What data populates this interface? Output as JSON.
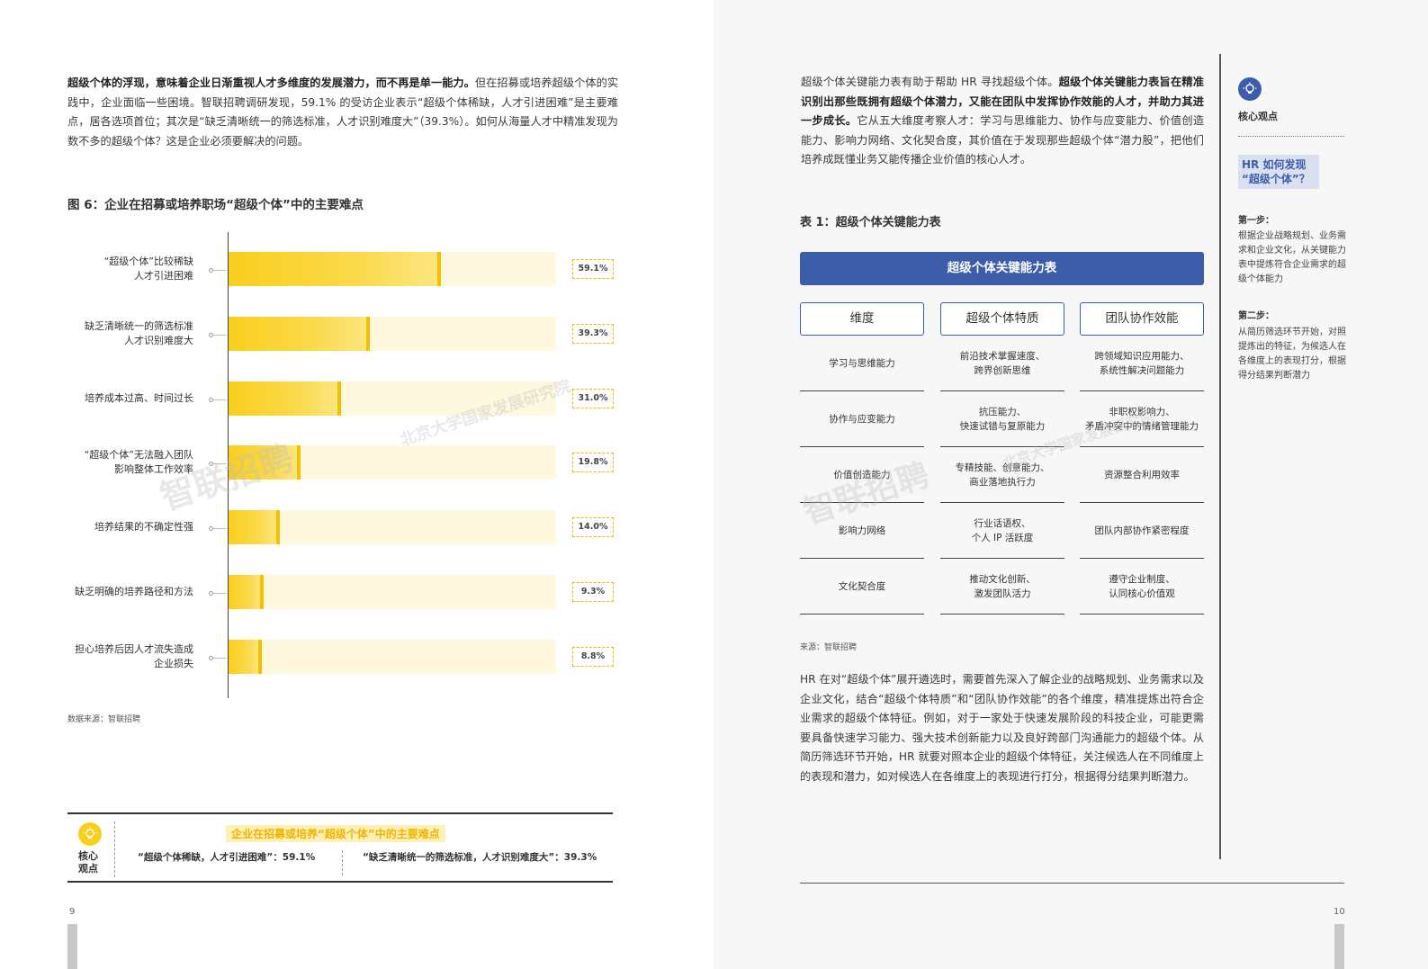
{
  "left": {
    "intro_bold": "超级个体的浮现，意味着企业日渐重视人才多维度的发展潜力，而不再是单一能力。",
    "intro_rest": "但在招募或培养超级个体的实践中，企业面临一些困境。智联招聘调研发现，59.1% 的受访企业表示“超级个体稀缺，人才引进困难”是主要难点，居各选项首位；其次是“缺乏清晰统一的筛选标准，人才识别难度大”（39.3%）。如何从海量人才中精准发现为数不多的超级个体？这是企业必须要解决的问题。",
    "figure_title": "图 6：企业在招募或培养职场“超级个体”中的主要难点",
    "source": "数据来源：智联招聘",
    "key_point": {
      "label": "核心\n观点",
      "title": "企业在招募或培养“超级个体”中的主要难点",
      "item1": "“超级个体稀缺，人才引进困难”：59.1%",
      "item2": "“缺乏清晰统一的筛选标准，人才识别难度大”：39.3%"
    },
    "page_number": "9"
  },
  "chart_data": {
    "type": "bar",
    "orientation": "horizontal",
    "categories": [
      "“超级个体”比较稀缺\n人才引进困难",
      "缺乏清晰统一的筛选标准\n人才识别难度大",
      "培养成本过高、时间过长",
      "“超级个体”无法融入团队\n影响整体工作效率",
      "培养结果的不确定性强",
      "缺乏明确的培养路径和方法",
      "担心培养后因人才流失造成\n企业损失"
    ],
    "values": [
      59.1,
      39.3,
      31.0,
      19.8,
      14.0,
      9.3,
      8.8
    ],
    "value_labels": [
      "59.1%",
      "39.3%",
      "31.0%",
      "19.8%",
      "14.0%",
      "9.3%",
      "8.8%"
    ],
    "xlim": [
      0,
      92
    ],
    "title": "图 6：企业在招募或培养职场“超级个体”中的主要难点",
    "colors": {
      "bar": "#f9cf1d",
      "track": "#fdf8de",
      "label_border": "#f0b800"
    }
  },
  "right": {
    "intro_plain1": "超级个体关键能力表有助于帮助 HR 寻找超级个体。",
    "intro_bold": "超级个体关键能力表旨在精准识别出那些既拥有超级个体潜力，又能在团队中发挥协作效能的人才，并助力其进一步成长。",
    "intro_plain2": "它从五大维度考察人才：学习与思维能力、协作与应变能力、价值创造能力、影响力网络、文化契合度，其价值在于发现那些超级个体“潜力股”，把他们培养成既懂业务又能传播企业价值的核心人才。",
    "table_title": "表 1：超级个体关键能力表",
    "table_banner": "超级个体关键能力表",
    "table_headers": [
      "维度",
      "超级个体特质",
      "团队协作效能"
    ],
    "table_rows": [
      [
        "学习与思维能力",
        "前沿技术掌握速度、\n跨界创新思维",
        "跨领域知识应用能力、\n系统性解决问题能力"
      ],
      [
        "协作与应变能力",
        "抗压能力、\n快速试错与复原能力",
        "非职权影响力、\n矛盾冲突中的情绪管理能力"
      ],
      [
        "价值创造能力",
        "专精技能、创意能力、\n商业落地执行力",
        "资源整合利用效率"
      ],
      [
        "影响力网络",
        "行业话语权、\n个人 IP 活跃度",
        "团队内部协作紧密程度"
      ],
      [
        "文化契合度",
        "推动文化创新、\n激发团队活力",
        "遵守企业制度、\n认同核心价值观"
      ]
    ],
    "table_source": "来源：智联招聘",
    "body": "HR 在对“超级个体”展开遴选时，需要首先深入了解企业的战略规划、业务需求以及企业文化，结合“超级个体特质”和“团队协作效能”的各个维度，精准提炼出符合企业需求的超级个体特征。例如，对于一家处于快速发展阶段的科技企业，可能更需要具备快速学习能力、强大技术创新能力以及良好跨部门沟通能力的超级个体。从简历筛选环节开始，HR 就要对照本企业的超级个体特征，关注候选人在不同维度上的表现和潜力，如对候选人在各维度上的表现进行打分，根据得分结果判断潜力。",
    "page_number": "10",
    "sidebar": {
      "label": "核心观点",
      "question": "HR 如何发现\n“超级个体”？",
      "step1_title": "第一步：",
      "step1_body": "根据企业战略规划、业务需求和企业文化，从关键能力表中提炼符合企业需求的超级个体能力",
      "step2_title": "第二步：",
      "step2_body": "从简历筛选环节开始，对照提炼出的特征，为候选人在各维度上的表现打分，根据得分结果判断潜力"
    }
  }
}
